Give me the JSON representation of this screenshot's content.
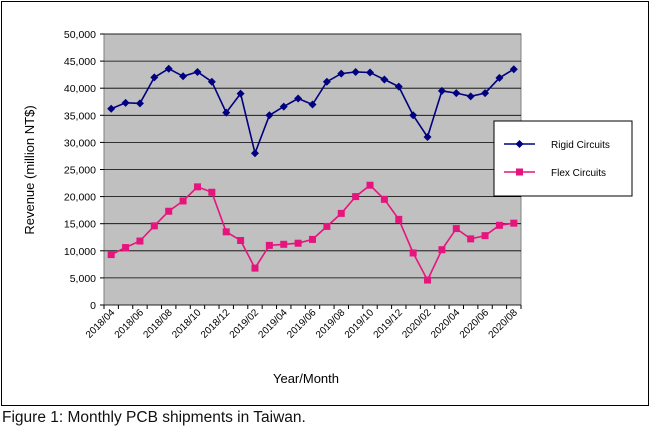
{
  "caption": "Figure 1: Monthly PCB shipments in Taiwan.",
  "colors": {
    "plot_bg": "#c0c0c0",
    "rigid": "#000080",
    "flex": "#e6157e",
    "grid": "#000000"
  },
  "chart_data": {
    "type": "line",
    "title": "",
    "xlabel": "Year/Month",
    "ylabel": "Revenue  (million NT$)",
    "ylim": [
      0,
      50000
    ],
    "ytick_step": 5000,
    "ytick_labels": [
      "0",
      "5,000",
      "10,000",
      "15,000",
      "20,000",
      "25,000",
      "30,000",
      "35,000",
      "40,000",
      "45,000",
      "50,000"
    ],
    "grid": "horizontal",
    "legend_position": "right",
    "categories": [
      "2018/04",
      "2018/05",
      "2018/06",
      "2018/07",
      "2018/08",
      "2018/09",
      "2018/10",
      "2018/11",
      "2018/12",
      "2019/01",
      "2019/02",
      "2019/03",
      "2019/04",
      "2019/05",
      "2019/06",
      "2019/07",
      "2019/08",
      "2019/09",
      "2019/10",
      "2019/11",
      "2019/12",
      "2020/01",
      "2020/02",
      "2020/03",
      "2020/04",
      "2020/05",
      "2020/06",
      "2020/07",
      "2020/08"
    ],
    "xtick_labels": [
      "2018/04",
      "2018/06",
      "2018/08",
      "2018/10",
      "2018/12",
      "2019/02",
      "2019/04",
      "2019/06",
      "2019/08",
      "2019/10",
      "2019/12",
      "2020/02",
      "2020/04",
      "2020/06",
      "2020/08"
    ],
    "series": [
      {
        "name": "Rigid Circuits",
        "marker": "diamond",
        "color": "#000080",
        "values": [
          36200,
          37300,
          37200,
          42000,
          43600,
          42200,
          43000,
          41200,
          35500,
          39000,
          28000,
          35000,
          36600,
          38100,
          37000,
          41200,
          42700,
          43000,
          42900,
          41600,
          40300,
          35000,
          31000,
          39500,
          39100,
          38500,
          39100,
          41900,
          43500
        ]
      },
      {
        "name": "Flex Circuits",
        "marker": "square",
        "color": "#e6157e",
        "values": [
          9300,
          10600,
          11800,
          14600,
          17300,
          19200,
          21800,
          20800,
          13500,
          11900,
          6800,
          11000,
          11200,
          11400,
          12100,
          14500,
          16900,
          20000,
          22100,
          19500,
          15800,
          9600,
          4600,
          10200,
          14100,
          12200,
          12800,
          14700,
          15100
        ]
      }
    ]
  }
}
